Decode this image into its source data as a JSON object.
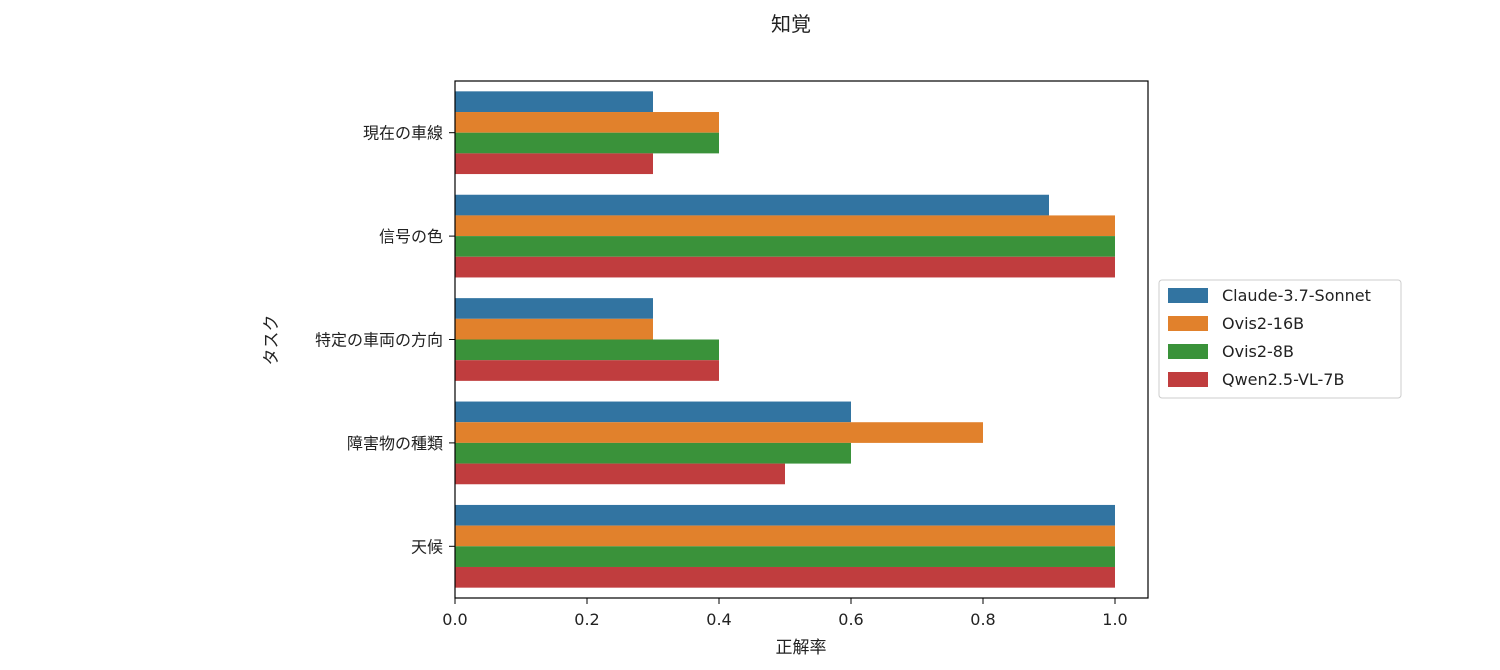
{
  "chart_data": {
    "type": "bar",
    "orientation": "horizontal",
    "title": "知覚",
    "xlabel": "正解率",
    "ylabel": "タスク",
    "xlim": [
      0.0,
      1.05
    ],
    "xticks": [
      "0.0",
      "0.2",
      "0.4",
      "0.6",
      "0.8",
      "1.0"
    ],
    "xtick_values": [
      0.0,
      0.2,
      0.4,
      0.6,
      0.8,
      1.0
    ],
    "grid": false,
    "legend_position": "right",
    "categories": [
      "現在の車線",
      "信号の色",
      "特定の車両の方向",
      "障害物の種類",
      "天候"
    ],
    "series": [
      {
        "name": "Claude-3.7-Sonnet",
        "color": "#3274a1",
        "values": [
          0.3,
          0.9,
          0.3,
          0.6,
          1.0
        ]
      },
      {
        "name": "Ovis2-16B",
        "color": "#e1812c",
        "values": [
          0.4,
          1.0,
          0.3,
          0.8,
          1.0
        ]
      },
      {
        "name": "Ovis2-8B",
        "color": "#3a923a",
        "values": [
          0.4,
          1.0,
          0.4,
          0.6,
          1.0
        ]
      },
      {
        "name": "Qwen2.5-VL-7B",
        "color": "#c03d3e",
        "values": [
          0.3,
          1.0,
          0.4,
          0.5,
          1.0
        ]
      }
    ]
  }
}
